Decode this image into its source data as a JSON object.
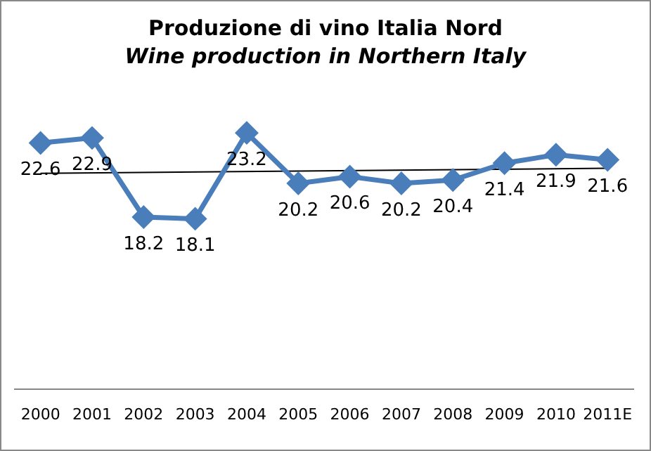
{
  "chart_data": {
    "type": "line",
    "title": "Produzione di vino Italia Nord",
    "subtitle": "Wine production in Northern Italy",
    "categories": [
      "2000",
      "2001",
      "2002",
      "2003",
      "2004",
      "2005",
      "2006",
      "2007",
      "2008",
      "2009",
      "2010",
      "2011E"
    ],
    "series": [
      {
        "color": "#4a7ebb",
        "marker": "diamond",
        "values": [
          22.6,
          22.9,
          18.2,
          18.1,
          23.2,
          20.2,
          20.6,
          20.2,
          20.4,
          21.4,
          21.9,
          21.6
        ],
        "value_labels": [
          "22.6",
          "22.9",
          "18.2",
          "18.1",
          "23.2",
          "20.2",
          "20.6",
          "20.2",
          "20.4",
          "21.4",
          "21.9",
          "21.6"
        ]
      },
      {
        "type": "line",
        "color": "#000000",
        "marker": "none",
        "values": [
          20.8,
          null,
          null,
          null,
          null,
          null,
          null,
          null,
          null,
          null,
          null,
          21.1
        ]
      }
    ],
    "tick_labels": "x",
    "grid": false,
    "legend": false
  }
}
